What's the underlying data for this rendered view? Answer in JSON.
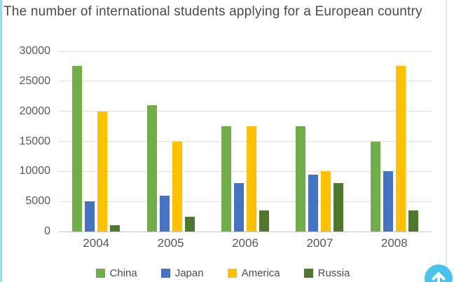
{
  "title": "The number of international students applying for a European country",
  "chart_data": {
    "type": "bar",
    "title": "The number of international students applying for a European country",
    "categories": [
      "2004",
      "2005",
      "2006",
      "2007",
      "2008"
    ],
    "series": [
      {
        "name": "China",
        "color": "#6fae49",
        "values": [
          27500,
          21000,
          17500,
          17500,
          15000
        ]
      },
      {
        "name": "Japan",
        "color": "#4472c4",
        "values": [
          5000,
          6000,
          8000,
          9500,
          10000
        ]
      },
      {
        "name": "America",
        "color": "#ffc000",
        "values": [
          20000,
          15000,
          17500,
          10000,
          27500
        ]
      },
      {
        "name": "Russia",
        "color": "#4f772e",
        "values": [
          1000,
          2500,
          3500,
          8000,
          3500
        ]
      }
    ],
    "xlabel": "",
    "ylabel": "",
    "ylim": [
      0,
      30000
    ],
    "ytick_step": 5000,
    "ytick_labels": [
      "0",
      "5000",
      "10000",
      "15000",
      "20000",
      "25000",
      "30000"
    ],
    "grid": "horizontal",
    "legend_position": "bottom"
  },
  "widgets": {
    "scroll_top_button": {
      "icon": "arrow-up-icon",
      "color": "#49c3eb"
    }
  },
  "colors": {
    "background": "#ffffff",
    "left_accent": "#a2d9ea",
    "right_accent": "#d2eef7",
    "gridline": "#dedede",
    "axis_line": "#c6c6c6",
    "tick_text": "#595959",
    "title_text": "#4a4a4a"
  }
}
